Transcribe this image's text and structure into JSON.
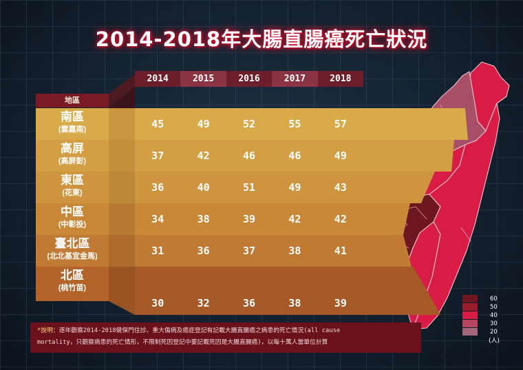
{
  "title": "2014-2018年大腸直腸癌死亡狀況",
  "region_header": "地區",
  "years": [
    "2014",
    "2015",
    "2016",
    "2017",
    "2018"
  ],
  "rows": [
    {
      "name": "南區",
      "sub": "(雲嘉南)",
      "values": [
        45,
        49,
        52,
        55,
        57
      ],
      "color": "#d9aa4a"
    },
    {
      "name": "高屏",
      "sub": "(高屏彭)",
      "values": [
        37,
        42,
        46,
        46,
        49
      ],
      "color": "#d49f44"
    },
    {
      "name": "東區",
      "sub": "(花東)",
      "values": [
        36,
        40,
        51,
        49,
        43
      ],
      "color": "#cf953e"
    },
    {
      "name": "中區",
      "sub": "(中彰投)",
      "values": [
        34,
        38,
        39,
        42,
        42
      ],
      "color": "#c98838"
    },
    {
      "name": "臺北區",
      "sub": "(北北基宜金馬)",
      "values": [
        31,
        36,
        37,
        38,
        41
      ],
      "color": "#c17a33"
    },
    {
      "name": "北區",
      "sub": "(桃竹苗)",
      "values": [
        30,
        32,
        36,
        38,
        39
      ],
      "color": "#b2642b"
    }
  ],
  "chart_data": {
    "type": "table",
    "title": "2014-2018年大腸直腸癌死亡狀況",
    "columns": [
      "2014",
      "2015",
      "2016",
      "2017",
      "2018"
    ],
    "series": [
      {
        "name": "南區(雲嘉南)",
        "values": [
          45,
          49,
          52,
          55,
          57
        ]
      },
      {
        "name": "高屏(高屏彭)",
        "values": [
          37,
          42,
          46,
          46,
          49
        ]
      },
      {
        "name": "東區(花東)",
        "values": [
          36,
          40,
          51,
          49,
          43
        ]
      },
      {
        "name": "中區(中彰投)",
        "values": [
          34,
          38,
          39,
          42,
          42
        ]
      },
      {
        "name": "臺北區(北北基宜金馬)",
        "values": [
          31,
          36,
          37,
          38,
          41
        ]
      },
      {
        "name": "北區(桃竹苗)",
        "values": [
          30,
          32,
          36,
          38,
          39
        ]
      }
    ]
  },
  "note": {
    "star": "*說明：",
    "line1": "逐年觀察2014-2018健保門住診、重大傷病及癌症登記有記載大腸直腸癌之病患的死亡情況(all cause",
    "line2": "mortality，只觀察病患的死亡情形，不限制死因登記中要記載死因是大腸直腸癌)，以每十萬人當單位計算"
  },
  "legend": {
    "levels": [
      "60",
      "50",
      "40",
      "30",
      "20"
    ],
    "colors": [
      "#6e1720",
      "#9a1d2c",
      "#d81c45",
      "#b84560",
      "#a3667a"
    ],
    "unit": "(人)"
  },
  "map_colors": {
    "north": "#a64f66",
    "taipei": "#d81c45",
    "central": "#d81c45",
    "south": "#6e1720",
    "kaoping": "#d81c45",
    "east": "#d81c45",
    "border": "#f3c3ce"
  }
}
